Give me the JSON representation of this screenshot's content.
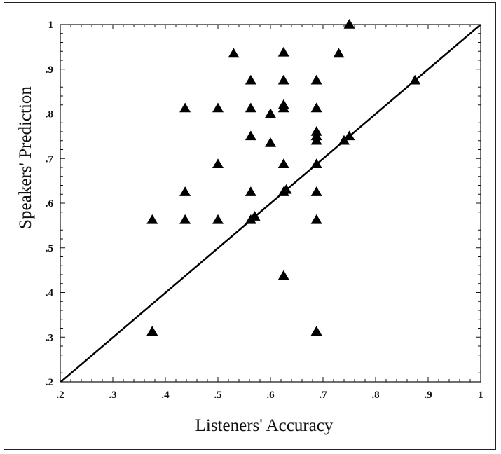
{
  "chart_data": {
    "type": "scatter",
    "xlabel": "Listeners' Accuracy",
    "ylabel": "Speakers' Prediction",
    "xlim": [
      0.2,
      1.0
    ],
    "ylim": [
      0.2,
      1.0
    ],
    "x_ticks": [
      0.2,
      0.3,
      0.4,
      0.5,
      0.6,
      0.7,
      0.8,
      0.9,
      1.0
    ],
    "x_tick_labels": [
      ".2",
      ".3",
      ".4",
      ".5",
      ".6",
      ".7",
      ".8",
      ".9",
      "1"
    ],
    "y_ticks": [
      0.2,
      0.3,
      0.4,
      0.5,
      0.6,
      0.7,
      0.8,
      0.9,
      1.0
    ],
    "y_tick_labels": [
      ".2",
      ".3",
      ".4",
      ".5",
      ".6",
      ".7",
      ".8",
      ".9",
      "1"
    ],
    "marker": "triangle",
    "reference_line": {
      "x": [
        0.2,
        1.0
      ],
      "y": [
        0.2,
        1.0
      ]
    },
    "points": [
      {
        "x": 0.375,
        "y": 0.5625
      },
      {
        "x": 0.375,
        "y": 0.3125
      },
      {
        "x": 0.4375,
        "y": 0.8125
      },
      {
        "x": 0.4375,
        "y": 0.625
      },
      {
        "x": 0.4375,
        "y": 0.5625
      },
      {
        "x": 0.5,
        "y": 0.8125
      },
      {
        "x": 0.5,
        "y": 0.6875
      },
      {
        "x": 0.5,
        "y": 0.5625
      },
      {
        "x": 0.53,
        "y": 0.935
      },
      {
        "x": 0.5625,
        "y": 0.875
      },
      {
        "x": 0.5625,
        "y": 0.8125
      },
      {
        "x": 0.5625,
        "y": 0.75
      },
      {
        "x": 0.5625,
        "y": 0.625
      },
      {
        "x": 0.5625,
        "y": 0.5625
      },
      {
        "x": 0.57,
        "y": 0.57
      },
      {
        "x": 0.6,
        "y": 0.8
      },
      {
        "x": 0.6,
        "y": 0.735
      },
      {
        "x": 0.625,
        "y": 0.9375
      },
      {
        "x": 0.625,
        "y": 0.875
      },
      {
        "x": 0.625,
        "y": 0.82
      },
      {
        "x": 0.625,
        "y": 0.8125
      },
      {
        "x": 0.625,
        "y": 0.6875
      },
      {
        "x": 0.625,
        "y": 0.625
      },
      {
        "x": 0.63,
        "y": 0.63
      },
      {
        "x": 0.625,
        "y": 0.4375
      },
      {
        "x": 0.6875,
        "y": 0.875
      },
      {
        "x": 0.6875,
        "y": 0.8125
      },
      {
        "x": 0.6875,
        "y": 0.76
      },
      {
        "x": 0.6875,
        "y": 0.75
      },
      {
        "x": 0.6875,
        "y": 0.74
      },
      {
        "x": 0.6875,
        "y": 0.6875
      },
      {
        "x": 0.6875,
        "y": 0.625
      },
      {
        "x": 0.6875,
        "y": 0.5625
      },
      {
        "x": 0.6875,
        "y": 0.3125
      },
      {
        "x": 0.73,
        "y": 0.935
      },
      {
        "x": 0.74,
        "y": 0.74
      },
      {
        "x": 0.75,
        "y": 0.75
      },
      {
        "x": 0.75,
        "y": 1.0
      },
      {
        "x": 0.875,
        "y": 0.875
      }
    ]
  }
}
